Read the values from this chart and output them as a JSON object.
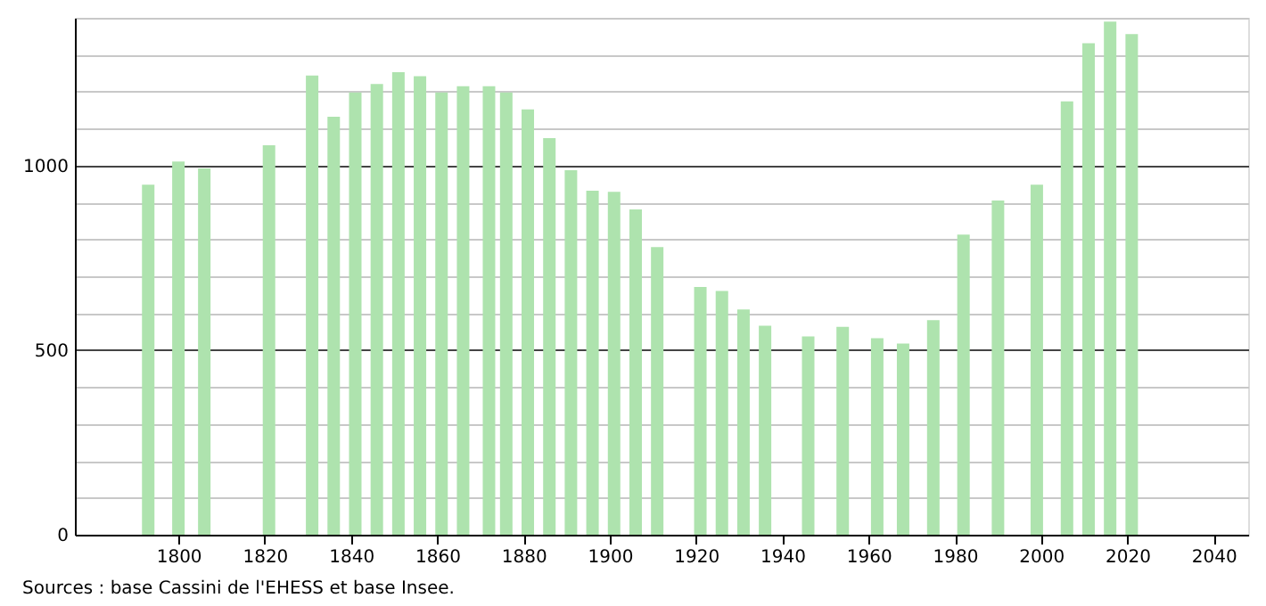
{
  "chart_data": {
    "type": "bar",
    "x": [
      1793,
      1800,
      1806,
      1821,
      1831,
      1836,
      1841,
      1846,
      1851,
      1856,
      1861,
      1866,
      1872,
      1876,
      1881,
      1886,
      1891,
      1896,
      1901,
      1906,
      1911,
      1921,
      1926,
      1931,
      1936,
      1946,
      1954,
      1962,
      1968,
      1975,
      1982,
      1990,
      1999,
      2006,
      2011,
      2016,
      2021
    ],
    "values": [
      948,
      1011,
      992,
      1055,
      1244,
      1132,
      1198,
      1221,
      1253,
      1242,
      1198,
      1215,
      1215,
      1198,
      1152,
      1074,
      987,
      932,
      929,
      881,
      779,
      671,
      660,
      610,
      566,
      537,
      563,
      532,
      518,
      581,
      813,
      905,
      948,
      1174,
      1331,
      1390,
      1356
    ],
    "color": "#aee3ae",
    "xlim": [
      1776,
      2048
    ],
    "xticks": [
      1800,
      1820,
      1840,
      1860,
      1880,
      1900,
      1920,
      1940,
      1960,
      1980,
      2000,
      2020,
      2040
    ],
    "ylim": [
      0,
      1400
    ],
    "yticks": [
      0,
      {
        "value": 100,
        "label": null
      },
      {
        "value": 200,
        "label": null
      },
      {
        "value": 300,
        "label": null
      },
      {
        "value": 400,
        "label": null
      },
      500,
      {
        "value": 600,
        "label": null
      },
      {
        "value": 700,
        "label": null
      },
      {
        "value": 800,
        "label": null
      },
      {
        "value": 900,
        "label": null
      },
      1000,
      {
        "value": 1100,
        "label": null
      },
      {
        "value": 1200,
        "label": null
      },
      {
        "value": 1300,
        "label": null
      },
      {
        "value": 1400,
        "label": null
      }
    ],
    "grid": "y",
    "annotations": [
      "Sources : base Cassini de l'EHESS et base Insee."
    ]
  }
}
